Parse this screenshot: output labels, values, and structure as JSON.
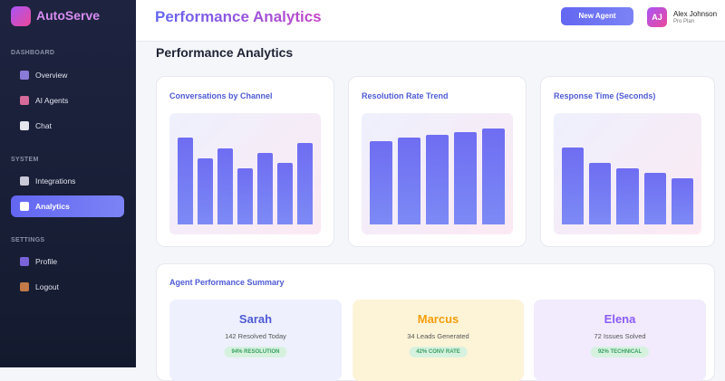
{
  "sidebar": {
    "brand": "AutoServe",
    "sections": [
      {
        "title": "DASHBOARD",
        "items": [
          "Overview",
          "AI Agents",
          "Chat"
        ]
      },
      {
        "title": "SYSTEM",
        "items": [
          "Integrations",
          "Analytics"
        ]
      },
      {
        "title": "SETTINGS",
        "items": [
          "Profile",
          "Logout"
        ]
      }
    ]
  },
  "header": {
    "title": "Performance Analytics",
    "button": "New Agent",
    "user": {
      "initials": "AJ",
      "name": "Alex Johnson",
      "plan": "Pro Plan"
    }
  },
  "page_title": "Performance Analytics",
  "charts": [
    {
      "type": "bar",
      "title": "Conversations by Channel",
      "values": [
        96,
        73,
        84,
        62,
        79,
        68,
        90
      ],
      "ylim": [
        0,
        120
      ]
    },
    {
      "type": "bar",
      "title": "Resolution Rate Trend",
      "values": [
        92,
        96,
        99,
        102,
        106
      ],
      "ylim": [
        0,
        120
      ]
    },
    {
      "type": "bar",
      "title": "Response Time (Seconds)",
      "values": [
        85,
        68,
        62,
        57,
        51
      ],
      "ylim": [
        0,
        120
      ]
    }
  ],
  "summary": {
    "title": "Agent Performance Summary",
    "agents": [
      {
        "name": "Sarah",
        "stat": "142 Resolved Today",
        "badge": "94% RESOLUTION"
      },
      {
        "name": "Marcus",
        "stat": "34 Leads Generated",
        "badge": "42% CONV RATE"
      },
      {
        "name": "Elena",
        "stat": "72 Issues Solved",
        "badge": "92% TECHNICAL"
      }
    ]
  }
}
